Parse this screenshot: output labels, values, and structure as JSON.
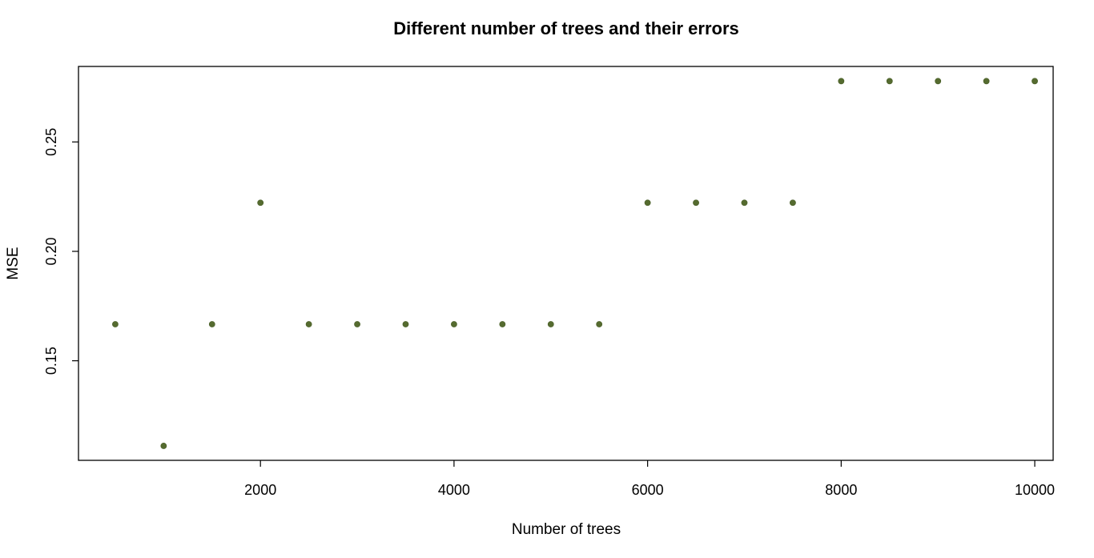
{
  "chart_data": {
    "type": "scatter",
    "title": "Different number of trees and their errors",
    "xlabel": "Number of trees",
    "ylabel": "MSE",
    "xlim": [
      120,
      10190
    ],
    "ylim": [
      0.1045,
      0.2845
    ],
    "xticks": [
      2000,
      4000,
      6000,
      8000,
      10000
    ],
    "yticks": [
      0.15,
      0.2,
      0.25
    ],
    "xtick_labels": [
      "2000",
      "4000",
      "6000",
      "8000",
      "10000"
    ],
    "ytick_labels": [
      "0.15",
      "0.20",
      "0.25"
    ],
    "grid": false,
    "point_color": "#556b2f",
    "x": [
      500,
      1000,
      1500,
      2000,
      2500,
      3000,
      3500,
      4000,
      4500,
      5000,
      5500,
      6000,
      6500,
      7000,
      7500,
      8000,
      8500,
      9000,
      9500,
      10000
    ],
    "y": [
      0.1667,
      0.1111,
      0.1667,
      0.2222,
      0.1667,
      0.1667,
      0.1667,
      0.1667,
      0.1667,
      0.1667,
      0.1667,
      0.2222,
      0.2222,
      0.2222,
      0.2222,
      0.2778,
      0.2778,
      0.2778,
      0.2778,
      0.2778
    ]
  }
}
